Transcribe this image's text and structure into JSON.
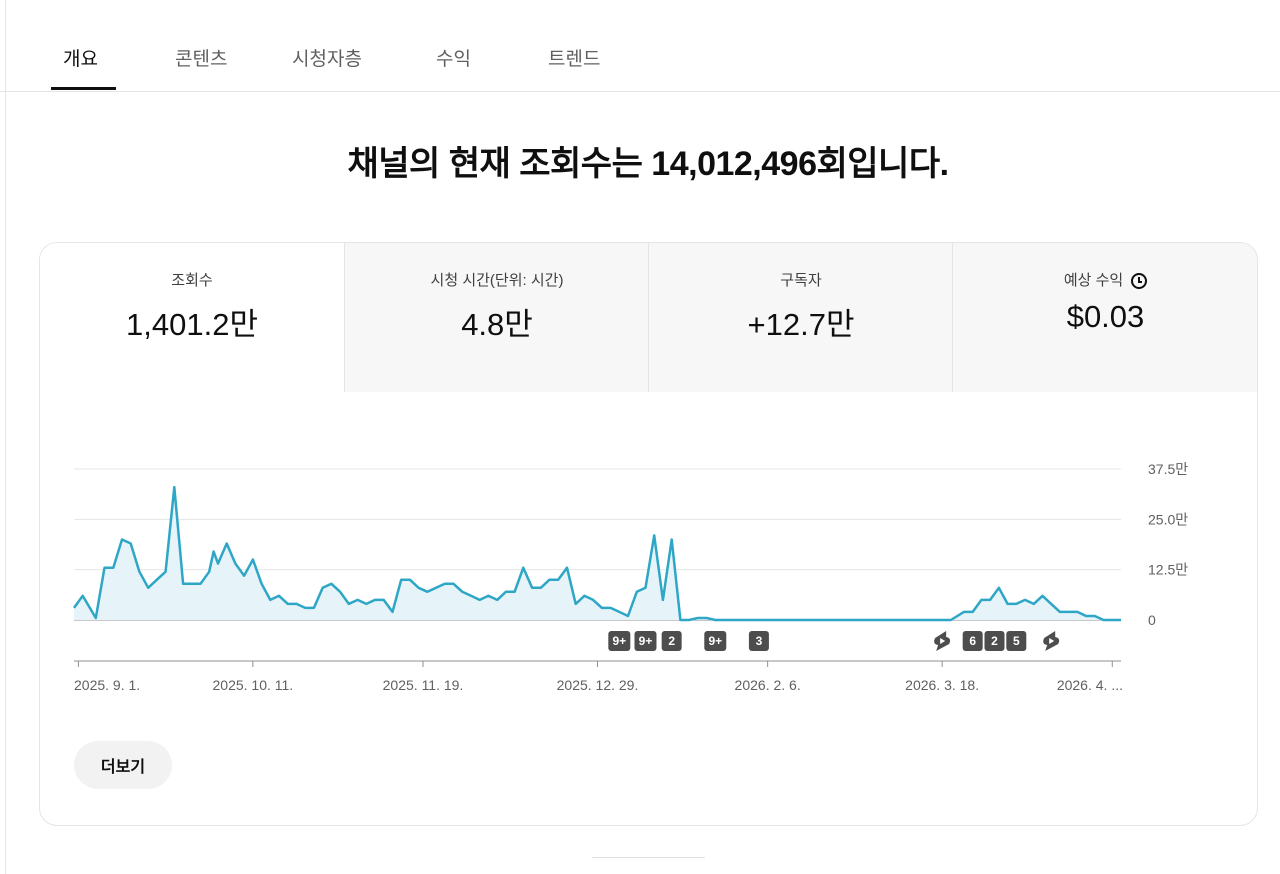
{
  "tabs": [
    {
      "label": "개요",
      "active": true
    },
    {
      "label": "콘텐츠",
      "active": false
    },
    {
      "label": "시청자층",
      "active": false
    },
    {
      "label": "수익",
      "active": false
    },
    {
      "label": "트렌드",
      "active": false
    }
  ],
  "headline": "채널의 현재 조회수는 14,012,496회입니다.",
  "metrics": [
    {
      "label": "조회수",
      "value": "1,401.2만",
      "selected": true
    },
    {
      "label": "시청 시간(단위: 시간)",
      "value": "4.8만",
      "selected": false
    },
    {
      "label": "구독자",
      "value": "+12.7만",
      "selected": false
    },
    {
      "label": "예상 수익",
      "value": "$0.03",
      "selected": false,
      "icon": "clock-icon"
    }
  ],
  "more_button": "더보기",
  "colors": {
    "line": "#2ea6c6",
    "area": "#e6f4fa",
    "marker_bg": "#4d4d4d"
  },
  "chart_data": {
    "type": "area",
    "ylabel": "",
    "ylim": [
      0,
      375000
    ],
    "y_ticks": [
      "37.5만",
      "25.0만",
      "12.5만",
      "0"
    ],
    "y_tick_values": [
      375000,
      250000,
      125000,
      0
    ],
    "x_tick_labels": [
      "2025. 9. 1.",
      "2025. 10. 11.",
      "2025. 11. 19.",
      "2025. 12. 29.",
      "2026. 2. 6.",
      "2026. 3. 18.",
      "2026. 4. ..."
    ],
    "x_tick_dates": [
      "2025-09-01",
      "2025-10-11",
      "2025-11-19",
      "2025-12-29",
      "2026-02-06",
      "2026-03-18",
      "2026-04-26"
    ],
    "series": [
      {
        "x": [
          "2025-08-31",
          "2025-09-02",
          "2025-09-05",
          "2025-09-07",
          "2025-09-09",
          "2025-09-11",
          "2025-09-13",
          "2025-09-15",
          "2025-09-17",
          "2025-09-19",
          "2025-09-21",
          "2025-09-23",
          "2025-09-25",
          "2025-09-27",
          "2025-09-29",
          "2025-10-01",
          "2025-10-02",
          "2025-10-03",
          "2025-10-05",
          "2025-10-07",
          "2025-10-09",
          "2025-10-11",
          "2025-10-13",
          "2025-10-15",
          "2025-10-17",
          "2025-10-19",
          "2025-10-21",
          "2025-10-23",
          "2025-10-25",
          "2025-10-27",
          "2025-10-29",
          "2025-10-31",
          "2025-11-02",
          "2025-11-04",
          "2025-11-06",
          "2025-11-08",
          "2025-11-10",
          "2025-11-12",
          "2025-11-14",
          "2025-11-16",
          "2025-11-18",
          "2025-11-20",
          "2025-11-22",
          "2025-11-24",
          "2025-11-26",
          "2025-11-28",
          "2025-11-30",
          "2025-12-02",
          "2025-12-04",
          "2025-12-06",
          "2025-12-08",
          "2025-12-10",
          "2025-12-12",
          "2025-12-14",
          "2025-12-16",
          "2025-12-18",
          "2025-12-20",
          "2025-12-22",
          "2025-12-24",
          "2025-12-26",
          "2025-12-28",
          "2025-12-30",
          "2026-01-01",
          "2026-01-03",
          "2026-01-05",
          "2026-01-07",
          "2026-01-09",
          "2026-01-11",
          "2026-01-13",
          "2026-01-15",
          "2026-01-17",
          "2026-01-19",
          "2026-01-21",
          "2026-01-23",
          "2026-01-25",
          "2026-01-27",
          "2026-01-29",
          "2026-01-31",
          "2026-02-02",
          "2026-02-05",
          "2026-02-10",
          "2026-02-15",
          "2026-02-20",
          "2026-02-25",
          "2026-03-01",
          "2026-03-10",
          "2026-03-20",
          "2026-03-23",
          "2026-03-25",
          "2026-03-27",
          "2026-03-29",
          "2026-03-31",
          "2026-04-02",
          "2026-04-04",
          "2026-04-06",
          "2026-04-08",
          "2026-04-10",
          "2026-04-12",
          "2026-04-14",
          "2026-04-16",
          "2026-04-18",
          "2026-04-20",
          "2026-04-22",
          "2026-04-24",
          "2026-04-26",
          "2026-04-28"
        ],
        "values": [
          30000,
          60000,
          5000,
          130000,
          130000,
          200000,
          190000,
          120000,
          80000,
          100000,
          120000,
          330000,
          90000,
          90000,
          90000,
          120000,
          170000,
          140000,
          190000,
          140000,
          110000,
          150000,
          90000,
          50000,
          60000,
          40000,
          40000,
          30000,
          30000,
          80000,
          90000,
          70000,
          40000,
          50000,
          40000,
          50000,
          50000,
          20000,
          100000,
          100000,
          80000,
          70000,
          80000,
          90000,
          90000,
          70000,
          60000,
          50000,
          60000,
          50000,
          70000,
          70000,
          130000,
          80000,
          80000,
          100000,
          100000,
          130000,
          40000,
          60000,
          50000,
          30000,
          30000,
          20000,
          10000,
          70000,
          80000,
          210000,
          50000,
          200000,
          0,
          0,
          5000,
          5000,
          0,
          0,
          0,
          0,
          0,
          0,
          0,
          0,
          0,
          0,
          0,
          0,
          0,
          20000,
          20000,
          50000,
          50000,
          80000,
          40000,
          40000,
          50000,
          40000,
          60000,
          40000,
          20000,
          20000,
          20000,
          10000,
          10000,
          0,
          0,
          0
        ]
      }
    ],
    "markers": [
      {
        "date": "2026-01-03",
        "label": "9+",
        "kind": "count"
      },
      {
        "date": "2026-01-09",
        "label": "9+",
        "kind": "count"
      },
      {
        "date": "2026-01-15",
        "label": "2",
        "kind": "count"
      },
      {
        "date": "2026-01-25",
        "label": "9+",
        "kind": "count"
      },
      {
        "date": "2026-02-04",
        "label": "3",
        "kind": "count"
      },
      {
        "date": "2026-03-18",
        "label": "",
        "kind": "shorts-icon"
      },
      {
        "date": "2026-03-25",
        "label": "6",
        "kind": "count"
      },
      {
        "date": "2026-03-30",
        "label": "2",
        "kind": "count"
      },
      {
        "date": "2026-04-04",
        "label": "5",
        "kind": "count"
      },
      {
        "date": "2026-04-12",
        "label": "",
        "kind": "shorts-icon"
      }
    ]
  }
}
